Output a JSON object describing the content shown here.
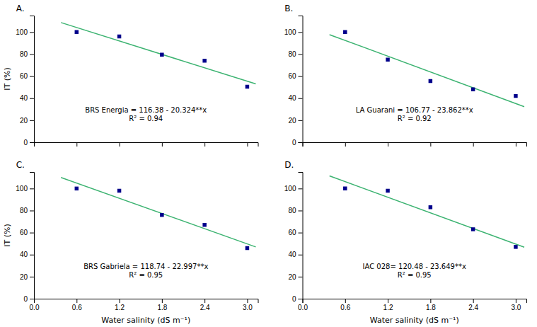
{
  "chart_data": [
    {
      "type": "scatter",
      "title": "A.",
      "annotations": [
        "BRS Energia = 116.38 - 20.324**x",
        "R² = 0.94"
      ],
      "y_label": "IT (%)",
      "series": [
        {
          "type": "line",
          "color": "#3cb371",
          "x": [
            0.38,
            3.12
          ],
          "values": [
            108.65688,
            52.96912
          ]
        },
        {
          "type": "scatter",
          "color": "#00008b",
          "marker": "square",
          "x": [
            0.6,
            1.2,
            1.8,
            2.4,
            3.0
          ],
          "values": [
            100.0,
            96.0,
            79.5,
            74.0,
            50.5
          ]
        }
      ],
      "xlim": [
        0.0,
        3.15
      ],
      "ylim": [
        0,
        115
      ],
      "xticks": [
        0.0,
        0.6,
        1.2,
        1.8,
        2.4,
        3.0
      ],
      "yticks": [
        0,
        20,
        40,
        60,
        80,
        100
      ],
      "tick_labels": "y",
      "grid": false
    },
    {
      "type": "scatter",
      "title": "B.",
      "annotations": [
        "LA Guarani = 106.77 - 23.862**x",
        "R² = 0.92"
      ],
      "series": [
        {
          "type": "line",
          "color": "#3cb371",
          "x": [
            0.38,
            3.12
          ],
          "values": [
            97.70244,
            32.32056
          ]
        },
        {
          "type": "scatter",
          "color": "#00008b",
          "marker": "square",
          "x": [
            0.6,
            1.2,
            1.8,
            2.4,
            3.0
          ],
          "values": [
            100.0,
            75.0,
            55.5,
            48.0,
            42.0
          ]
        }
      ],
      "xlim": [
        0.0,
        3.15
      ],
      "ylim": [
        0,
        115
      ],
      "xticks": [
        0.0,
        0.6,
        1.2,
        1.8,
        2.4,
        3.0
      ],
      "yticks": [
        0,
        20,
        40,
        60,
        80,
        100
      ],
      "tick_labels": "y",
      "grid": false
    },
    {
      "type": "scatter",
      "title": "C.",
      "annotations": [
        "BRS Gabriela  = 118.74 - 22.997**x",
        "R² = 0.95"
      ],
      "x_label": "Water salinity (dS m⁻¹)",
      "y_label": "IT (%)",
      "series": [
        {
          "type": "line",
          "color": "#3cb371",
          "x": [
            0.38,
            3.12
          ],
          "values": [
            110.00114,
            46.98936
          ]
        },
        {
          "type": "scatter",
          "color": "#00008b",
          "marker": "square",
          "x": [
            0.6,
            1.2,
            1.8,
            2.4,
            3.0
          ],
          "values": [
            100.0,
            98.0,
            76.0,
            67.0,
            46.0
          ]
        }
      ],
      "xlim": [
        0.0,
        3.15
      ],
      "ylim": [
        0,
        115
      ],
      "xticks": [
        {
          "value": 0.0,
          "label": "0.0"
        },
        0.6,
        1.2,
        1.8,
        2.4,
        {
          "value": 3.0,
          "label": "3.0"
        }
      ],
      "yticks": [
        0,
        20,
        40,
        60,
        80,
        100
      ],
      "grid": false
    },
    {
      "type": "scatter",
      "title": "D.",
      "annotations": [
        "IAC 028= 120.48 - 23.649**x",
        "R² = 0.95"
      ],
      "x_label": "Water salinity (dS m⁻¹)",
      "series": [
        {
          "type": "line",
          "color": "#3cb371",
          "x": [
            0.38,
            3.12
          ],
          "values": [
            111.49338,
            46.69512
          ]
        },
        {
          "type": "scatter",
          "color": "#00008b",
          "marker": "square",
          "x": [
            0.6,
            1.2,
            1.8,
            2.4,
            3.0
          ],
          "values": [
            100.0,
            98.0,
            83.0,
            63.0,
            47.0
          ]
        }
      ],
      "xlim": [
        0.0,
        3.15
      ],
      "ylim": [
        0,
        115
      ],
      "xticks": [
        {
          "value": 0.0,
          "label": "0.0"
        },
        0.6,
        1.2,
        1.8,
        2.4,
        {
          "value": 3.0,
          "label": "3.0"
        }
      ],
      "yticks": [
        0,
        20,
        40,
        60,
        80,
        100
      ],
      "grid": false
    }
  ]
}
